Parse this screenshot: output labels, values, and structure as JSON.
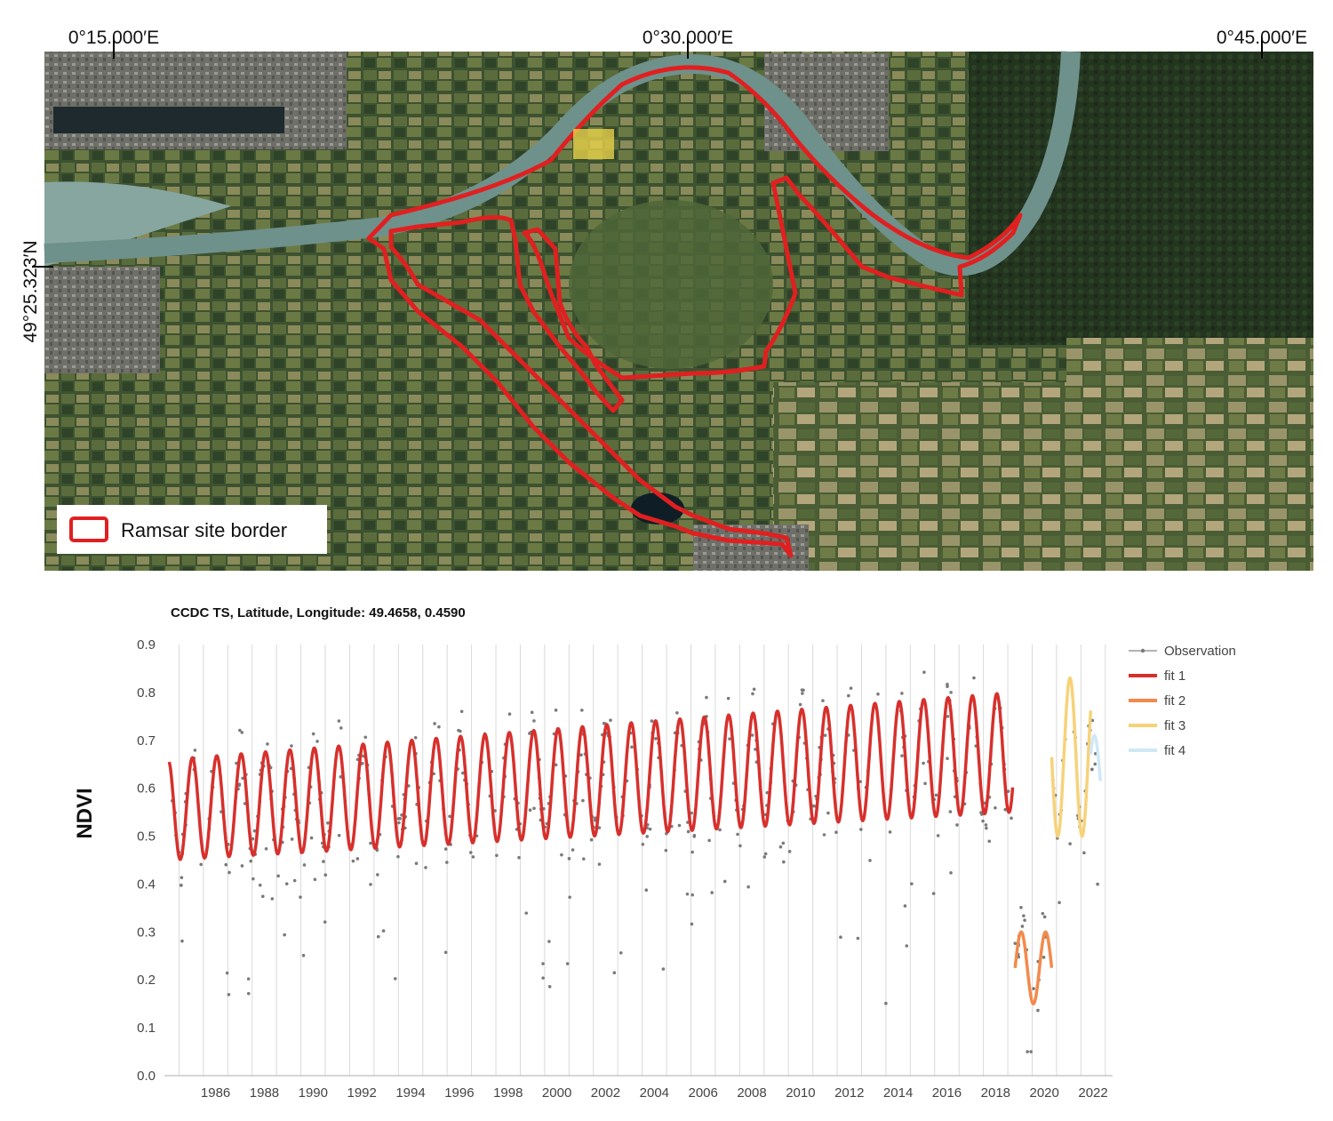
{
  "map": {
    "lon_labels": [
      "0°15.000′E",
      "0°30.000′E",
      "0°45.000′E"
    ],
    "lat_label": "49°25.323′N",
    "legend_label": "Ramsar site border",
    "colors": {
      "border": "#e02020",
      "highlight": "#e8d24a",
      "forest_dark": "#23341f",
      "field_light": "#6f7f4a",
      "river": "#6f918c"
    }
  },
  "chart_data": {
    "type": "line",
    "title": "CCDC TS, Latitude, Longitude: 49.4658, 0.4590",
    "xlabel": "",
    "ylabel": "NDVI",
    "xlim": [
      1984.4,
      2023.3
    ],
    "ylim": [
      0.0,
      0.9
    ],
    "x_ticks": [
      1986,
      1988,
      1990,
      1992,
      1994,
      1996,
      1998,
      2000,
      2002,
      2004,
      2006,
      2008,
      2010,
      2012,
      2014,
      2016,
      2018,
      2020,
      2022
    ],
    "y_ticks": [
      "0.0",
      "0.1",
      "0.2",
      "0.3",
      "0.4",
      "0.5",
      "0.6",
      "0.7",
      "0.8",
      "0.9"
    ],
    "grid": "vertical lines at each year",
    "legend_position": "top-right",
    "series": [
      {
        "name": "Observation",
        "kind": "scatter",
        "color": "#7a7a7a"
      },
      {
        "name": "fit 1",
        "kind": "line",
        "color": "#d7302c",
        "start": 1984.6,
        "end": 2019.2,
        "min_start": 0.45,
        "min_end": 0.55,
        "max_start": 0.66,
        "max_end": 0.8
      },
      {
        "name": "fit 2",
        "kind": "line",
        "color": "#f28a4b",
        "start": 2019.3,
        "end": 2020.8,
        "min": 0.15,
        "max": 0.3
      },
      {
        "name": "fit 3",
        "kind": "line",
        "color": "#f7d27a",
        "start": 2020.8,
        "end": 2022.4,
        "min": 0.5,
        "max": 0.83
      },
      {
        "name": "fit 4",
        "kind": "line",
        "color": "#cfe8f5",
        "start": 2022.4,
        "end": 2022.8,
        "min": 0.52,
        "max": 0.71
      }
    ]
  }
}
